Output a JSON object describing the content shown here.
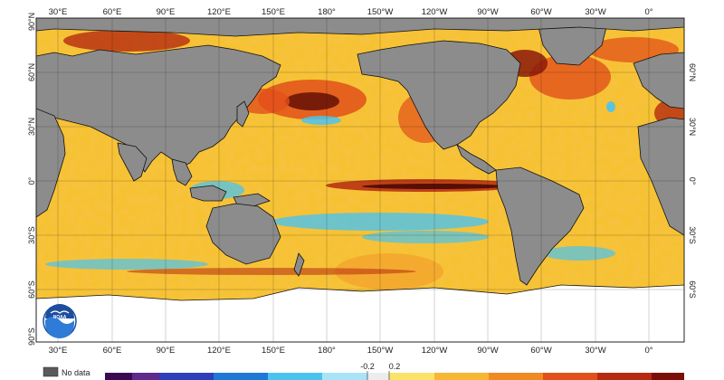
{
  "map": {
    "top_lon_labels": [
      "30°E",
      "60°E",
      "90°E",
      "120°E",
      "150°E",
      "180°",
      "150°W",
      "120°W",
      "90°W",
      "60°W",
      "30°W",
      "0°"
    ],
    "bottom_lon_labels": [
      "30°E",
      "60°E",
      "90°E",
      "120°E",
      "150°E",
      "180°",
      "150°W",
      "120°W",
      "90°W",
      "60°W",
      "30°W",
      "0°"
    ],
    "left_lat_labels": [
      "90°N",
      "60°N",
      "30°N",
      "0°",
      "30°S",
      "60°S",
      "90°S"
    ],
    "right_lat_labels": [
      "60°N",
      "30°N",
      "0°",
      "30°S",
      "60°S"
    ],
    "colors": {
      "ocean_base": "#f6c233",
      "land": "#8c8c8c",
      "ice": "#ffffff",
      "warm_strong": "#8b1a0a",
      "warm": "#e2501a",
      "warm_mid": "#f39a2a",
      "cool": "#4cc3ef",
      "cool_deep": "#1565c0"
    },
    "logo": {
      "name": "noaa-logo",
      "text": "NOAA"
    }
  },
  "legend": {
    "no_data_label": "No data",
    "no_data_color": "#5a5a5a",
    "center_labels": [
      "-0.2",
      "0.2"
    ],
    "scale_colors": [
      "#3b0b52",
      "#5e2a8c",
      "#2c3fb8",
      "#1f78d4",
      "#4cc3ef",
      "#a8e3f7",
      "#ececec",
      "#fbe36a",
      "#f7b733",
      "#f08a24",
      "#e2501a",
      "#b52a10",
      "#7a0f08"
    ]
  }
}
